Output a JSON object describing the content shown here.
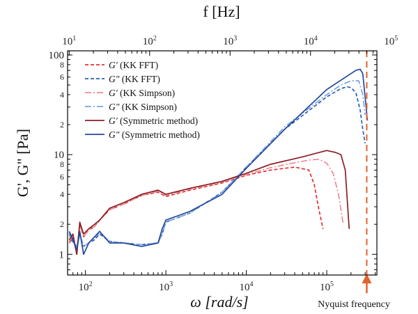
{
  "chart_data": {
    "type": "line",
    "xlabel": "ω [rad/s]",
    "x2label": "f [Hz]",
    "ylabel": "G', G\" [Pa]",
    "x_scale": "log",
    "y_scale": "log",
    "xlim": [
      60,
      420000
    ],
    "x2lim": [
      9.55,
      66845
    ],
    "ylim": [
      0.62,
      110
    ],
    "x_major_ticks": [
      {
        "value": 100,
        "label": "10",
        "sup": "2"
      },
      {
        "value": 1000,
        "label": "10",
        "sup": "3"
      },
      {
        "value": 10000,
        "label": "10",
        "sup": "4"
      },
      {
        "value": 100000,
        "label": "10",
        "sup": "5"
      }
    ],
    "x2_major_ticks": [
      {
        "value": 10,
        "label": "10",
        "sup": "1"
      },
      {
        "value": 100,
        "label": "10",
        "sup": "2"
      },
      {
        "value": 1000,
        "label": "10",
        "sup": "3"
      },
      {
        "value": 10000,
        "label": "10",
        "sup": "4"
      },
      {
        "value": 100000,
        "label": "10",
        "sup": "5"
      }
    ],
    "y_major_ticks": [
      {
        "value": 1,
        "label": "1"
      },
      {
        "value": 10,
        "label": "10"
      },
      {
        "value": 100,
        "label": "100"
      }
    ],
    "y_minor_labels": [
      {
        "value": 2,
        "label": "2"
      },
      {
        "value": 4,
        "label": "4"
      },
      {
        "value": 6,
        "label": "6"
      },
      {
        "value": 8,
        "label": "8"
      },
      {
        "value": 20,
        "label": "2"
      },
      {
        "value": 40,
        "label": "4"
      },
      {
        "value": 60,
        "label": "6"
      },
      {
        "value": 80,
        "label": "8"
      }
    ],
    "legend_position": "top-left",
    "annotation": {
      "label": "Nyquist frequency",
      "x": 314159
    },
    "series": [
      {
        "name": "G' (KK FFT)",
        "legend_main": "G'",
        "legend_rest": " (KK FFT)",
        "color": "#e03030",
        "dash": "5,3",
        "x": [
          63,
          70,
          78,
          85,
          95,
          110,
          130,
          150,
          200,
          300,
          500,
          800,
          1000,
          2000,
          5000,
          10000,
          20000,
          40000,
          60000,
          70000,
          80000,
          90000
        ],
        "y": [
          1.3,
          1.5,
          1.0,
          2.0,
          1.5,
          1.75,
          1.9,
          2.2,
          2.8,
          3.2,
          3.9,
          4.2,
          3.8,
          4.4,
          5.2,
          6.2,
          7.0,
          7.5,
          7.0,
          5.0,
          2.8,
          1.8
        ]
      },
      {
        "name": "G\" (KK FFT)",
        "legend_main": "G\"",
        "legend_rest": " (KK FFT)",
        "color": "#2a5cb0",
        "dash": "5,3",
        "x": [
          63,
          70,
          78,
          85,
          95,
          110,
          130,
          150,
          200,
          300,
          500,
          800,
          900,
          1000,
          2000,
          5000,
          10000,
          30000,
          100000,
          150000,
          180000,
          200000,
          230000,
          260000,
          280000,
          300000
        ],
        "y": [
          1.6,
          1.3,
          1.2,
          1.6,
          1.2,
          1.3,
          1.4,
          1.6,
          1.35,
          1.3,
          1.25,
          1.3,
          1.6,
          2.1,
          2.6,
          4.2,
          7.5,
          18,
          38,
          46,
          48,
          47,
          42,
          28,
          18,
          13
        ]
      },
      {
        "name": "G' (KK Simpson)",
        "legend_main": "G'",
        "legend_rest": " (KK Simpson)",
        "color": "#ee8a96",
        "dash": "9,3,2,3",
        "x": [
          63,
          70,
          78,
          85,
          95,
          110,
          130,
          150,
          200,
          300,
          500,
          800,
          1000,
          2000,
          5000,
          10000,
          20000,
          40000,
          60000,
          80000,
          100000,
          120000,
          140000,
          160000
        ],
        "y": [
          1.35,
          1.55,
          1.0,
          2.0,
          1.5,
          1.75,
          1.9,
          2.2,
          2.8,
          3.2,
          3.9,
          4.3,
          3.9,
          4.5,
          5.3,
          6.3,
          7.4,
          8.3,
          8.8,
          9.0,
          8.2,
          6.5,
          4.0,
          2.0
        ]
      },
      {
        "name": "G\" (KK Simpson)",
        "legend_main": "G\"",
        "legend_rest": " (KK Simpson)",
        "color": "#7aa4e0",
        "dash": "9,3,2,3",
        "x": [
          63,
          70,
          78,
          85,
          95,
          110,
          130,
          150,
          200,
          300,
          500,
          800,
          900,
          1000,
          2000,
          5000,
          10000,
          30000,
          100000,
          150000,
          200000,
          250000,
          280000,
          300000
        ],
        "y": [
          1.65,
          1.35,
          1.15,
          1.6,
          1.2,
          1.3,
          1.45,
          1.65,
          1.35,
          1.3,
          1.25,
          1.3,
          1.6,
          2.1,
          2.6,
          4.2,
          7.5,
          19,
          40,
          50,
          55,
          55,
          40,
          25
        ]
      },
      {
        "name": "G' (Symmetric method)",
        "legend_main": "G'",
        "legend_rest": " (Symmetric method)",
        "color": "#8b1e22",
        "dash": "",
        "x": [
          63,
          70,
          78,
          85,
          95,
          110,
          130,
          150,
          200,
          300,
          500,
          800,
          1000,
          2000,
          5000,
          10000,
          20000,
          50000,
          80000,
          100000,
          130000,
          150000,
          170000,
          190000
        ],
        "y": [
          1.4,
          1.6,
          1.0,
          2.1,
          1.6,
          1.8,
          2.0,
          2.2,
          2.9,
          3.3,
          4.0,
          4.4,
          4.0,
          4.6,
          5.4,
          6.5,
          8.0,
          9.5,
          10.5,
          11.0,
          10.5,
          10.0,
          7.0,
          1.8
        ]
      },
      {
        "name": "G\" (Symmetric method)",
        "legend_main": "G\"",
        "legend_rest": " (Symmetric method)",
        "color": "#24479a",
        "dash": "",
        "x": [
          63,
          70,
          78,
          85,
          95,
          110,
          130,
          150,
          200,
          300,
          500,
          800,
          900,
          1000,
          2000,
          5000,
          10000,
          30000,
          100000,
          200000,
          230000,
          260000,
          280000,
          300000,
          320000
        ],
        "y": [
          1.7,
          1.4,
          1.1,
          1.7,
          1.0,
          1.3,
          1.5,
          1.7,
          1.3,
          1.3,
          1.2,
          1.3,
          1.8,
          2.2,
          2.7,
          4.0,
          7.3,
          18,
          45,
          65,
          70,
          72,
          65,
          38,
          22
        ]
      }
    ]
  }
}
